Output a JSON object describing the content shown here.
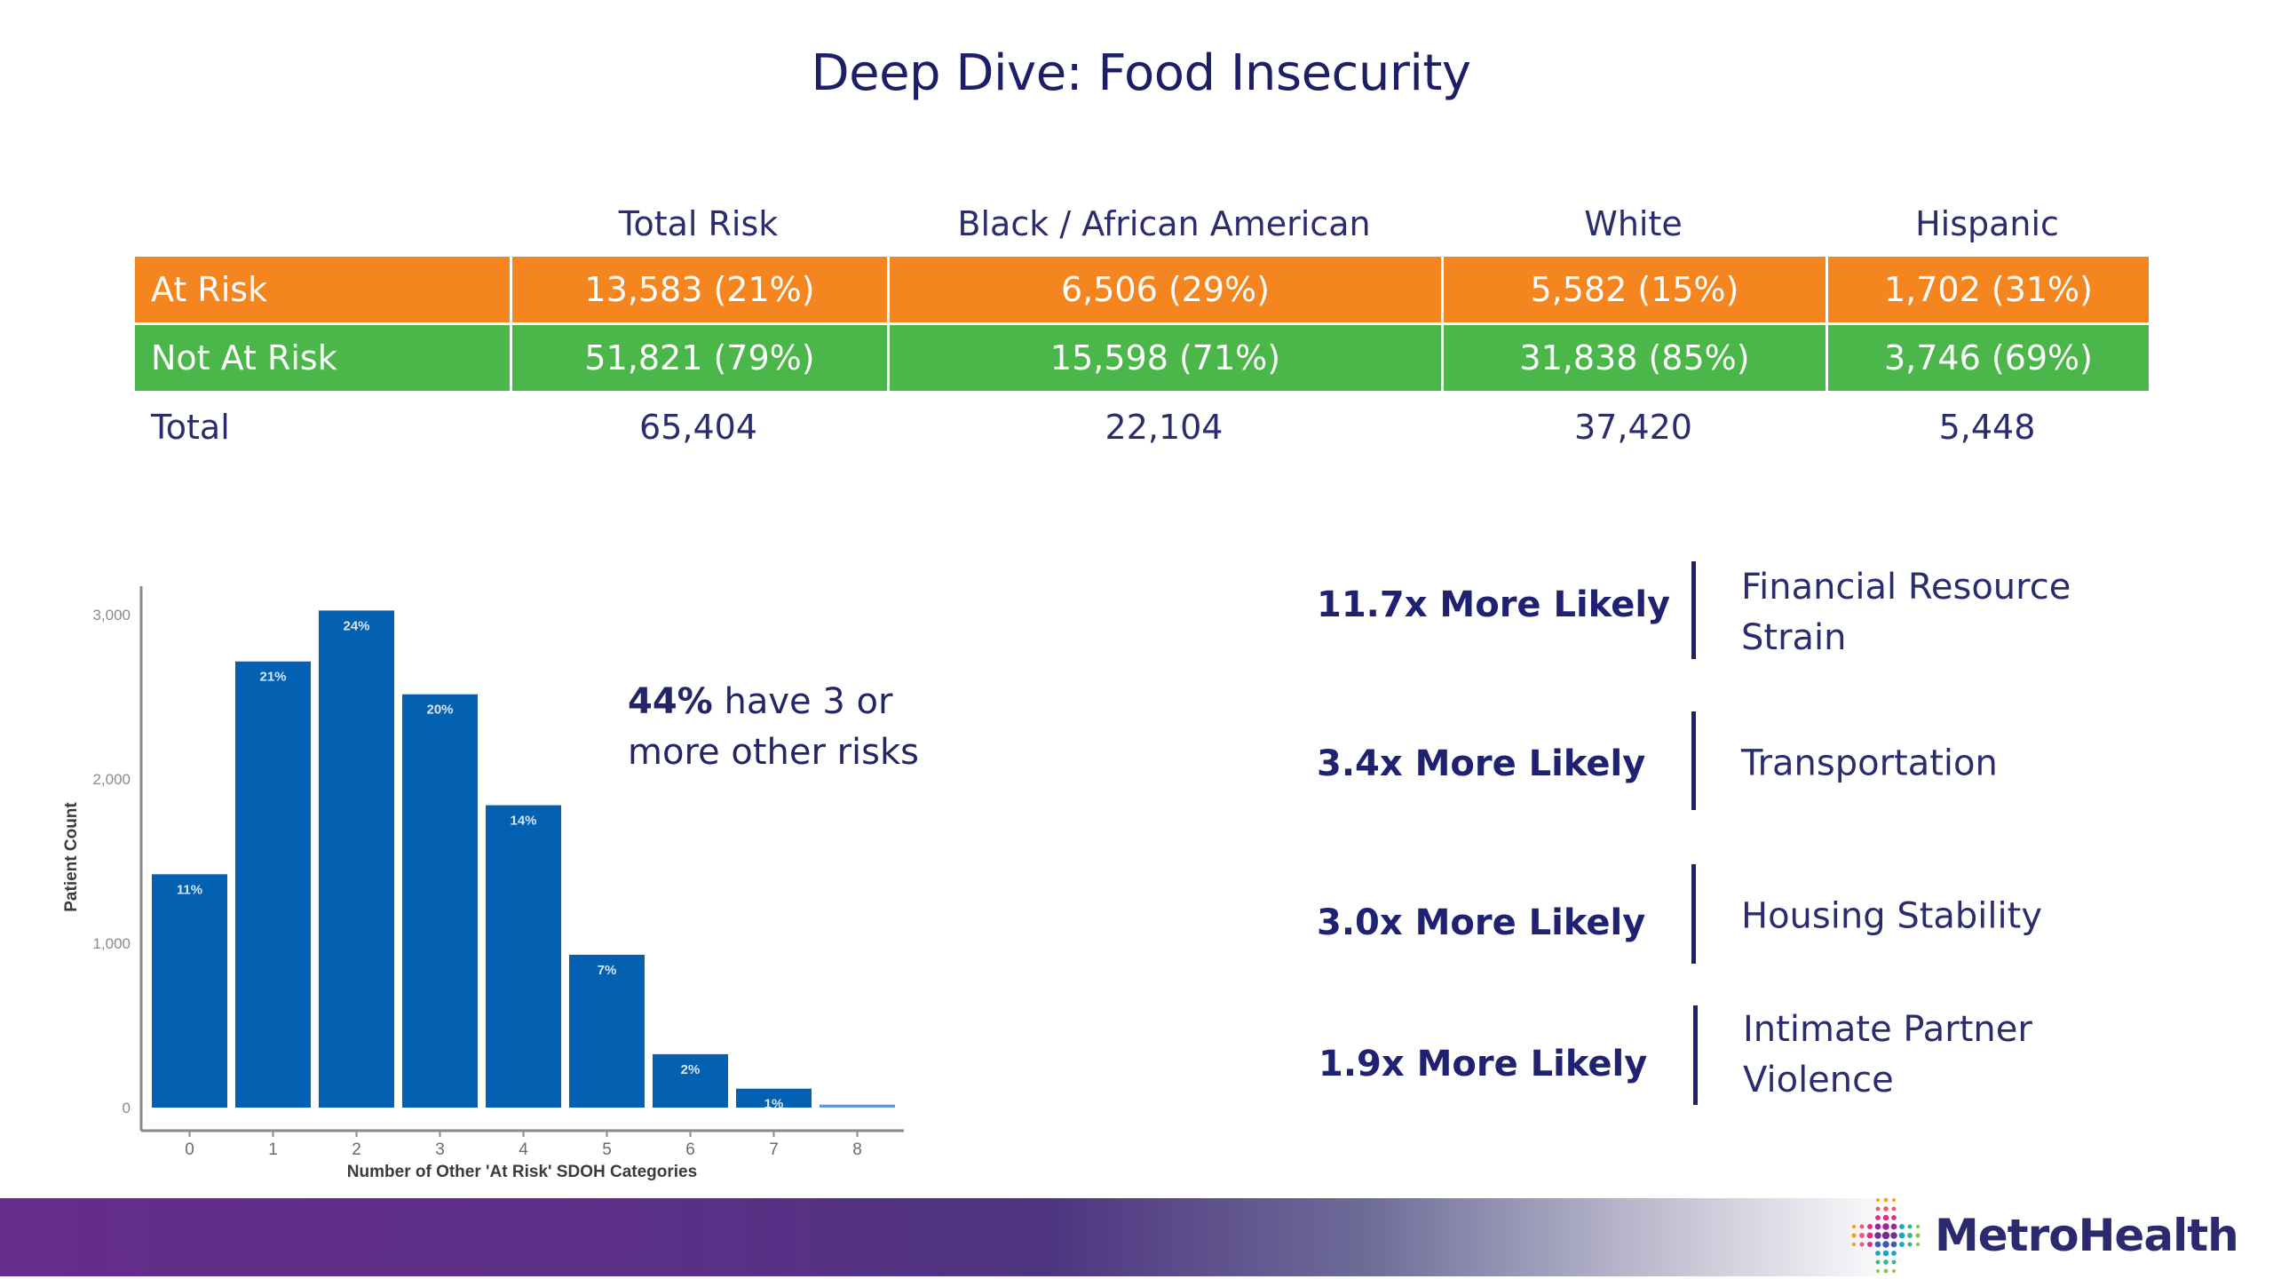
{
  "title": "Deep Dive: Food Insecurity",
  "table": {
    "columns": [
      "",
      "Total Risk",
      "Black / African American",
      "White",
      "Hispanic"
    ],
    "rows": [
      {
        "label": "At Risk",
        "values": [
          "13,583 (21%)",
          "6,506 (29%)",
          "5,582 (15%)",
          "1,702 (31%)"
        ]
      },
      {
        "label": "Not At Risk",
        "values": [
          "51,821 (79%)",
          "15,598 (71%)",
          "31,838 (85%)",
          "3,746 (69%)"
        ]
      },
      {
        "label": "Total",
        "values": [
          "65,404",
          "22,104",
          "37,420",
          "5,448"
        ]
      }
    ],
    "colors": {
      "at_risk": "#f5861f",
      "not_at_risk": "#4bb649",
      "text": "#2a2c6e"
    }
  },
  "callout": {
    "bold": "44%",
    "rest": " have 3 or more other risks"
  },
  "likelihoods": [
    {
      "value": "11.7x More Likely",
      "category": "Financial Resource Strain"
    },
    {
      "value": "3.4x More Likely",
      "category": "Transportation"
    },
    {
      "value": "3.0x More Likely",
      "category": "Housing Stability"
    },
    {
      "value": "1.9x More Likely",
      "category": "Intimate Partner Violence"
    }
  ],
  "logo": {
    "text": "MetroHealth",
    "icon": "dotted-cross-logo-icon"
  },
  "chart_data": {
    "type": "bar",
    "title": "",
    "xlabel": "Number of Other 'At Risk' SDOH Categories",
    "ylabel": "Patient Count",
    "categories": [
      "0",
      "1",
      "2",
      "3",
      "4",
      "5",
      "6",
      "7",
      "8"
    ],
    "values": [
      1420,
      2715,
      3025,
      2515,
      1840,
      930,
      325,
      115,
      18
    ],
    "data_labels": [
      "11%",
      "21%",
      "24%",
      "20%",
      "14%",
      "7%",
      "2%",
      "1%",
      ""
    ],
    "yticks": [
      0,
      1000,
      2000,
      3000
    ],
    "ytick_labels": [
      "0",
      "1,000",
      "2,000",
      "3,000"
    ],
    "ylim": [
      0,
      3200
    ],
    "grid": false,
    "bar_color": "#0460b0"
  }
}
